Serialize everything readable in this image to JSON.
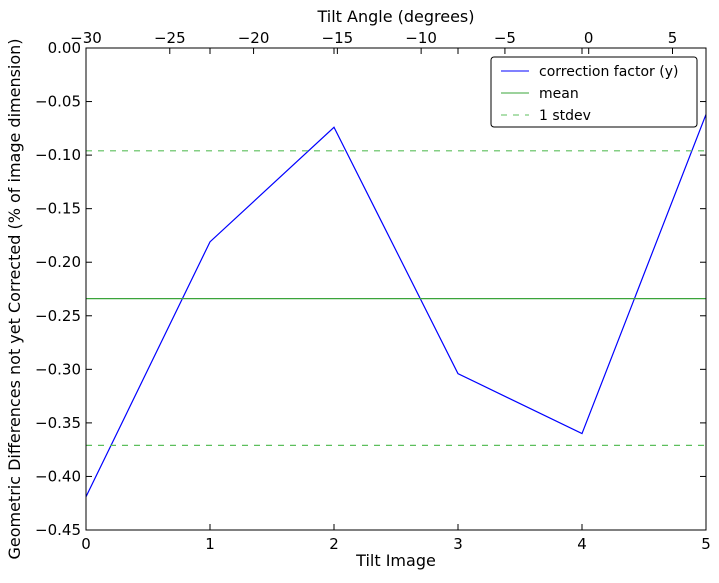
{
  "chart_data": {
    "type": "line",
    "xlabel": "Tilt Image",
    "ylabel": "Geometric Differences not yet Corrected (% of image dimension)",
    "top_xlabel": "Tilt Angle (degrees)",
    "xlim": [
      0,
      5
    ],
    "ylim": [
      -0.45,
      0.0
    ],
    "top_xlim": [
      -30,
      7
    ],
    "x_ticks": [
      0,
      1,
      2,
      3,
      4,
      5
    ],
    "x_tick_labels": [
      "0",
      "1",
      "2",
      "3",
      "4",
      "5"
    ],
    "y_ticks": [
      0.0,
      -0.05,
      -0.1,
      -0.15,
      -0.2,
      -0.25,
      -0.3,
      -0.35,
      -0.4,
      -0.45
    ],
    "y_tick_labels": [
      "0.00",
      "−0.05",
      "−0.10",
      "−0.15",
      "−0.20",
      "−0.25",
      "−0.30",
      "−0.35",
      "−0.40",
      "−0.45"
    ],
    "top_ticks": [
      -30,
      -25,
      -20,
      -15,
      -10,
      -5,
      0,
      5
    ],
    "top_tick_labels": [
      "−30",
      "−25",
      "−20",
      "−15",
      "−10",
      "−5",
      "0",
      "5"
    ],
    "grid": false,
    "legend_position": "top-right",
    "series": [
      {
        "name": "correction factor (y)",
        "kind": "line",
        "color": "#0000ff",
        "x": [
          0,
          1,
          2,
          3,
          4,
          5
        ],
        "y": [
          -0.419,
          -0.181,
          -0.074,
          -0.304,
          -0.36,
          -0.062
        ]
      },
      {
        "name": "mean",
        "kind": "hline",
        "color": "#3aa43a",
        "y": -0.234
      },
      {
        "name": "1 stdev",
        "kind": "hline-dashed",
        "color": "#5cbf5c",
        "y": [
          -0.096,
          -0.371
        ]
      }
    ]
  }
}
